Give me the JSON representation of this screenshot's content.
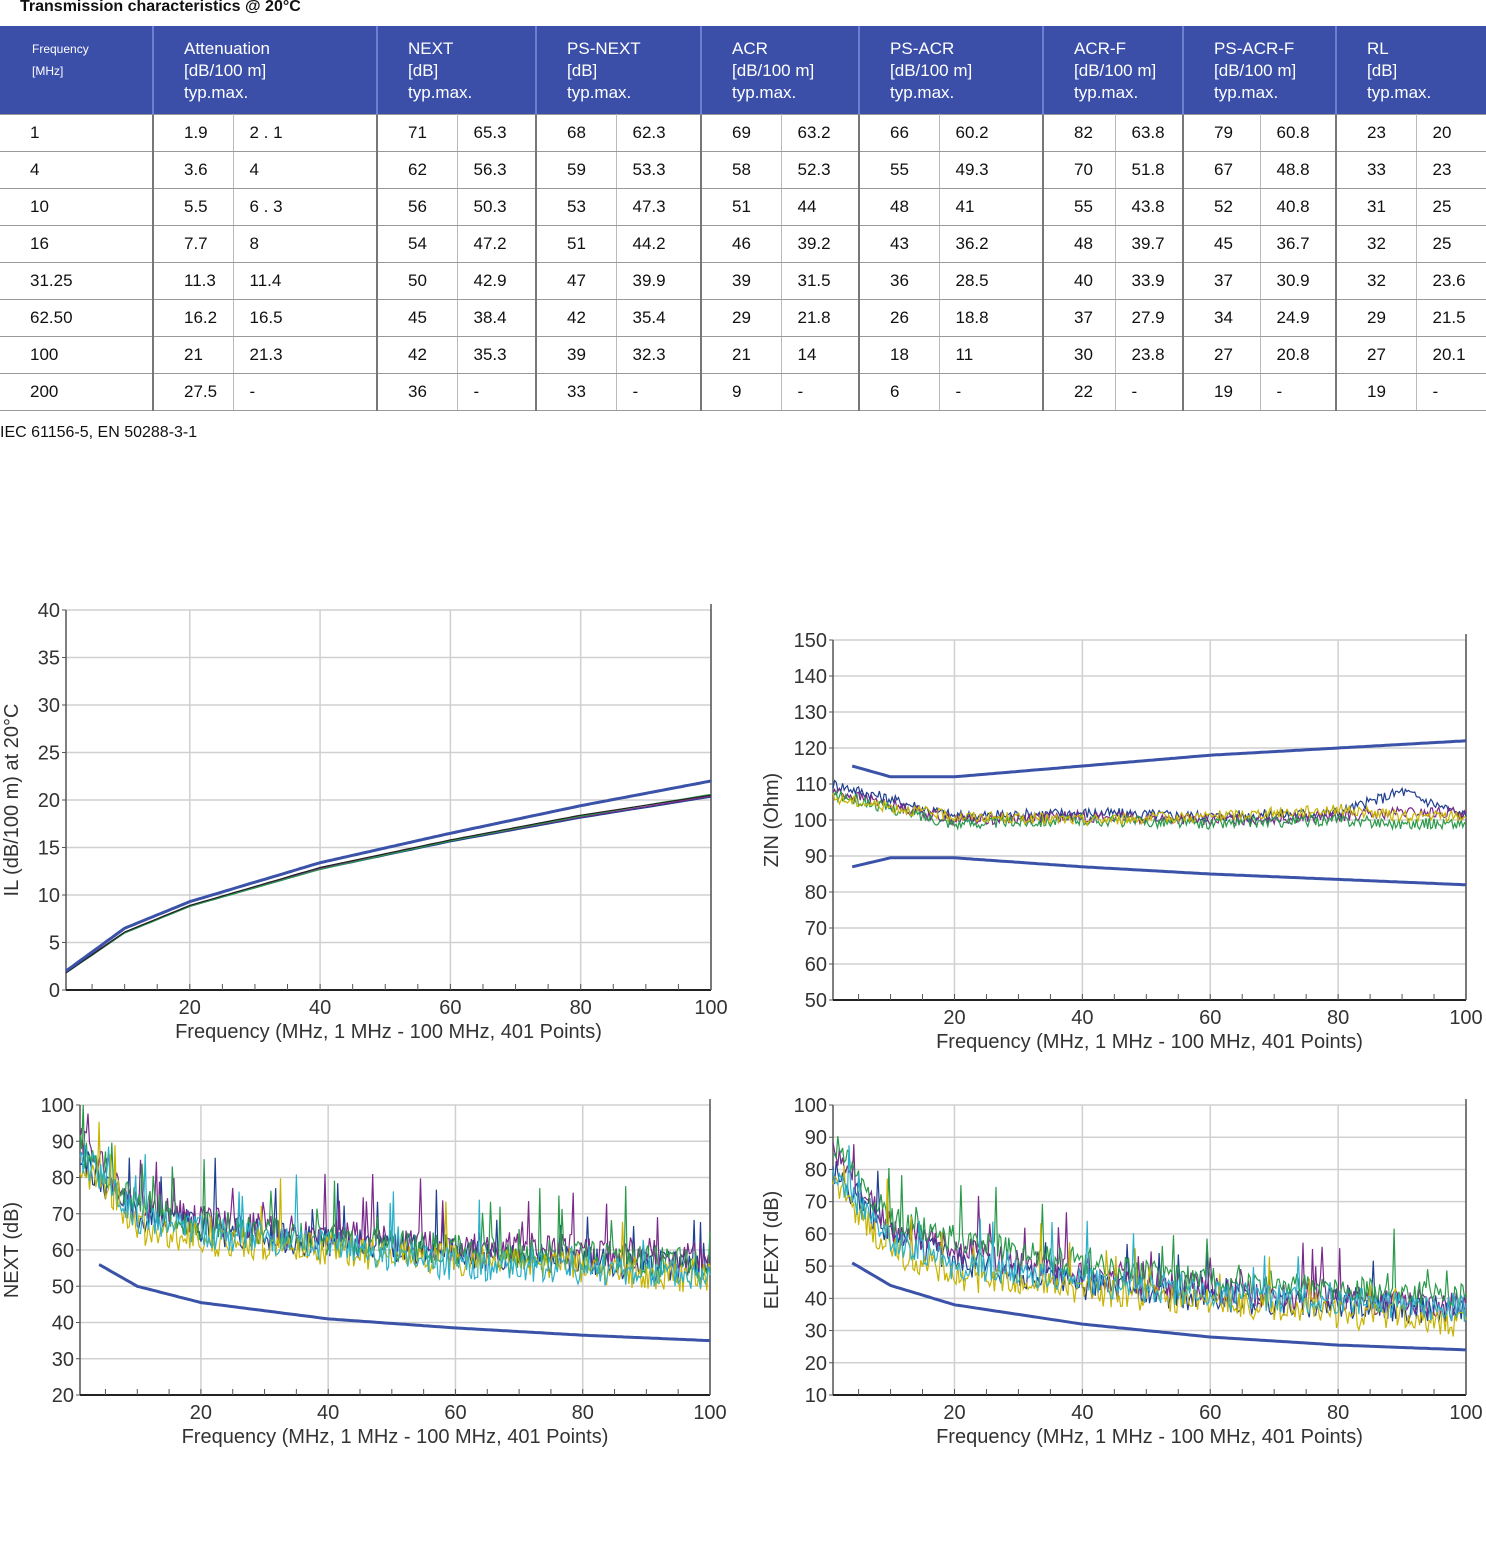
{
  "caption": "Transmission characteristics @ 20°C",
  "table": {
    "headers": [
      {
        "lines": [
          "Frequency",
          "[MHz]"
        ]
      },
      {
        "lines": [
          "Attenuation",
          "[dB/100 m]",
          "typ.max."
        ]
      },
      {
        "lines": [
          "NEXT",
          "[dB]",
          "typ.max."
        ]
      },
      {
        "lines": [
          "PS-NEXT",
          "[dB]",
          "typ.max."
        ]
      },
      {
        "lines": [
          "ACR",
          "[dB/100 m]",
          "typ.max."
        ]
      },
      {
        "lines": [
          "PS-ACR",
          "[dB/100 m]",
          "typ.max."
        ]
      },
      {
        "lines": [
          "ACR-F",
          "[dB/100 m]",
          "typ.max."
        ]
      },
      {
        "lines": [
          "PS-ACR-F",
          "[dB/100 m]",
          "typ.max."
        ]
      },
      {
        "lines": [
          "RL",
          "[dB]",
          "typ.max."
        ]
      }
    ],
    "rows": [
      [
        "1",
        "1.9",
        "2 . 1",
        "71",
        "65.3",
        "68",
        "62.3",
        "69",
        "63.2",
        "66",
        "60.2",
        "82",
        "63.8",
        "79",
        "60.8",
        "23",
        "20"
      ],
      [
        "4",
        "3.6",
        "4",
        "62",
        "56.3",
        "59",
        "53.3",
        "58",
        "52.3",
        "55",
        "49.3",
        "70",
        "51.8",
        "67",
        "48.8",
        "33",
        "23"
      ],
      [
        "10",
        "5.5",
        "6 . 3",
        "56",
        "50.3",
        "53",
        "47.3",
        "51",
        "44",
        "48",
        "41",
        "55",
        "43.8",
        "52",
        "40.8",
        "31",
        "25"
      ],
      [
        "16",
        "7.7",
        "8",
        "54",
        "47.2",
        "51",
        "44.2",
        "46",
        "39.2",
        "43",
        "36.2",
        "48",
        "39.7",
        "45",
        "36.7",
        "32",
        "25"
      ],
      [
        "31.25",
        "11.3",
        "11.4",
        "50",
        "42.9",
        "47",
        "39.9",
        "39",
        "31.5",
        "36",
        "28.5",
        "40",
        "33.9",
        "37",
        "30.9",
        "32",
        "23.6"
      ],
      [
        "62.50",
        "16.2",
        "16.5",
        "45",
        "38.4",
        "42",
        "35.4",
        "29",
        "21.8",
        "26",
        "18.8",
        "37",
        "27.9",
        "34",
        "24.9",
        "29",
        "21.5"
      ],
      [
        "100",
        "21",
        "21.3",
        "42",
        "35.3",
        "39",
        "32.3",
        "21",
        "14",
        "18",
        "11",
        "30",
        "23.8",
        "27",
        "20.8",
        "27",
        "20.1"
      ],
      [
        "200",
        "27.5",
        "-",
        "36",
        "-",
        "33",
        "-",
        "9",
        "-",
        "6",
        "-",
        "22",
        "-",
        "19",
        "-",
        "19",
        "-"
      ]
    ]
  },
  "standards": "IEC 61156-5, EN 50288-3-1",
  "chart_data": [
    {
      "type": "line",
      "xlabel": "Frequency (MHz, 1 MHz - 100 MHz, 401 Points)",
      "ylabel": "IL (dB/100 m) at 20°C",
      "xlim": [
        1,
        100
      ],
      "ylim": [
        0,
        40
      ],
      "xticks": [
        "20",
        "40",
        "60",
        "80",
        "100"
      ],
      "yticks": [
        "0",
        "5",
        "10",
        "15",
        "20",
        "25",
        "30",
        "35",
        "40"
      ],
      "grid": true,
      "limits": [
        {
          "x": [
            1,
            10,
            20,
            40,
            60,
            80,
            100
          ],
          "y": [
            2.0,
            6.5,
            9.3,
            13.4,
            16.5,
            19.4,
            22.0
          ]
        }
      ],
      "series": [
        {
          "color": "#1f3f8f",
          "x": [
            1,
            10,
            20,
            40,
            60,
            80,
            100
          ],
          "y": [
            1.8,
            6.0,
            8.8,
            12.7,
            15.6,
            18.1,
            20.3
          ]
        },
        {
          "color": "#7a2a8a",
          "x": [
            1,
            10,
            20,
            40,
            60,
            80,
            100
          ],
          "y": [
            1.9,
            6.1,
            8.9,
            12.8,
            15.7,
            18.2,
            20.4
          ]
        },
        {
          "color": "#2a9a4a",
          "x": [
            1,
            10,
            20,
            40,
            60,
            80,
            100
          ],
          "y": [
            1.8,
            6.0,
            8.8,
            12.7,
            15.7,
            18.3,
            20.6
          ]
        },
        {
          "color": "#222222",
          "x": [
            1,
            10,
            20,
            40,
            60,
            80,
            100
          ],
          "y": [
            1.8,
            6.1,
            8.9,
            12.9,
            15.8,
            18.4,
            20.5
          ]
        }
      ]
    },
    {
      "type": "line",
      "xlabel": "Frequency (MHz, 1 MHz - 100 MHz, 401 Points)",
      "ylabel": "ZIN (Ohm)",
      "xlim": [
        1,
        100
      ],
      "ylim": [
        50,
        150
      ],
      "xticks": [
        "20",
        "40",
        "60",
        "80",
        "100"
      ],
      "yticks": [
        "50",
        "60",
        "70",
        "80",
        "90",
        "100",
        "110",
        "120",
        "130",
        "140",
        "150"
      ],
      "grid": true,
      "limits": [
        {
          "x": [
            4,
            10,
            20,
            40,
            60,
            80,
            100
          ],
          "y": [
            115,
            112,
            112,
            115,
            118,
            120,
            122
          ]
        },
        {
          "x": [
            4,
            10,
            20,
            40,
            60,
            80,
            100
          ],
          "y": [
            87,
            89.5,
            89.5,
            87,
            85,
            83.5,
            82
          ]
        }
      ],
      "series_note": "4 measured traces around 100 Ohm",
      "series": [
        {
          "color": "#1f3f8f",
          "x": [
            1,
            20,
            40,
            60,
            80,
            90,
            100
          ],
          "y": [
            110,
            101,
            102,
            101,
            102,
            108,
            101
          ]
        },
        {
          "color": "#7a2a8a",
          "x": [
            1,
            20,
            40,
            60,
            80,
            90,
            100
          ],
          "y": [
            108,
            100,
            101,
            100,
            101,
            102,
            102
          ]
        },
        {
          "color": "#2a9a4a",
          "x": [
            1,
            20,
            40,
            60,
            80,
            90,
            100
          ],
          "y": [
            107,
            99,
            100,
            99,
            100,
            99,
            99
          ]
        },
        {
          "color": "#c8b400",
          "x": [
            1,
            20,
            40,
            60,
            80,
            90,
            100
          ],
          "y": [
            106,
            101,
            100,
            101,
            103,
            101,
            101
          ]
        }
      ]
    },
    {
      "type": "line",
      "xlabel": "Frequency (MHz, 1 MHz - 100 MHz, 401 Points)",
      "ylabel": "NEXT (dB)",
      "xlim": [
        1,
        100
      ],
      "ylim": [
        20,
        100
      ],
      "xticks": [
        "20",
        "40",
        "60",
        "80",
        "100"
      ],
      "yticks": [
        "20",
        "30",
        "40",
        "50",
        "60",
        "70",
        "80",
        "90",
        "100"
      ],
      "grid": true,
      "limits": [
        {
          "x": [
            4,
            10,
            20,
            40,
            60,
            80,
            100
          ],
          "y": [
            56,
            50,
            45.5,
            41,
            38.5,
            36.5,
            35
          ]
        }
      ],
      "series": [
        {
          "color": "#1f3f8f",
          "x": [
            1,
            10,
            20,
            40,
            60,
            80,
            100
          ],
          "y": [
            85,
            70,
            66,
            62,
            59,
            57,
            55
          ]
        },
        {
          "color": "#7a2a8a",
          "x": [
            1,
            10,
            20,
            40,
            60,
            80,
            100
          ],
          "y": [
            90,
            72,
            68,
            64,
            61,
            60,
            58
          ]
        },
        {
          "color": "#2a9a4a",
          "x": [
            1,
            10,
            20,
            40,
            60,
            80,
            100
          ],
          "y": [
            88,
            73,
            67,
            63,
            60,
            58,
            56
          ]
        },
        {
          "color": "#c8b400",
          "x": [
            1,
            10,
            20,
            40,
            60,
            80,
            100
          ],
          "y": [
            84,
            66,
            63,
            60,
            57,
            55,
            52
          ]
        },
        {
          "color": "#2ab0c8",
          "x": [
            1,
            10,
            20,
            40,
            60,
            80,
            100
          ],
          "y": [
            86,
            69,
            65,
            61,
            56,
            55,
            53
          ]
        }
      ]
    },
    {
      "type": "line",
      "xlabel": "Frequency (MHz, 1 MHz - 100 MHz, 401 Points)",
      "ylabel": "ELFEXT (dB)",
      "xlim": [
        1,
        100
      ],
      "ylim": [
        10,
        100
      ],
      "xticks": [
        "20",
        "40",
        "60",
        "80",
        "100"
      ],
      "yticks": [
        "10",
        "20",
        "30",
        "40",
        "50",
        "60",
        "70",
        "80",
        "90",
        "100"
      ],
      "grid": true,
      "limits": [
        {
          "x": [
            4,
            10,
            20,
            40,
            60,
            80,
            100
          ],
          "y": [
            51,
            44,
            38,
            32,
            28,
            25.5,
            24
          ]
        }
      ],
      "series": [
        {
          "color": "#1f3f8f",
          "x": [
            1,
            10,
            20,
            40,
            60,
            80,
            100
          ],
          "y": [
            80,
            60,
            52,
            44,
            40,
            38,
            36
          ]
        },
        {
          "color": "#7a2a8a",
          "x": [
            1,
            10,
            20,
            40,
            60,
            80,
            100
          ],
          "y": [
            85,
            62,
            55,
            47,
            43,
            40,
            38
          ]
        },
        {
          "color": "#2a9a4a",
          "x": [
            1,
            10,
            20,
            40,
            60,
            80,
            100
          ],
          "y": [
            88,
            64,
            58,
            50,
            45,
            43,
            40
          ]
        },
        {
          "color": "#c8b400",
          "x": [
            1,
            10,
            20,
            40,
            60,
            80,
            100
          ],
          "y": [
            76,
            55,
            47,
            42,
            39,
            35,
            32
          ]
        },
        {
          "color": "#2ab0c8",
          "x": [
            1,
            10,
            20,
            40,
            60,
            80,
            100
          ],
          "y": [
            78,
            58,
            50,
            45,
            41,
            39,
            37
          ]
        }
      ]
    }
  ]
}
